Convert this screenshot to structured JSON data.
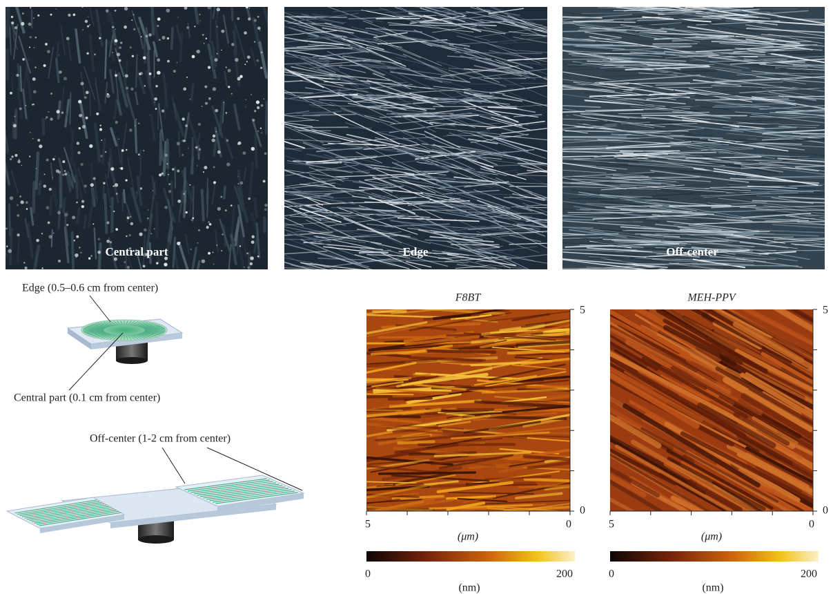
{
  "micrographs": [
    {
      "label": "Central part"
    },
    {
      "label": "Edge"
    },
    {
      "label": "Off-center"
    }
  ],
  "diagram": {
    "edge_label": "Edge (0.5–0.6 cm from center)",
    "central_label": "Central part (0.1 cm from center)",
    "offcenter_label": "Off-center (1-2 cm from center)"
  },
  "afm": [
    {
      "title": "F8BT",
      "y_ticks": [
        "5",
        "0"
      ],
      "x_ticks": [
        "5",
        "0"
      ],
      "x_label": "(μm)",
      "colorbar": {
        "ticks": [
          "0",
          "200"
        ],
        "label": "(nm)"
      }
    },
    {
      "title": "MEH-PPV",
      "y_ticks": [
        "5",
        "0"
      ],
      "x_ticks": [
        "5",
        "0"
      ],
      "x_label": "(μm)",
      "colorbar": {
        "ticks": [
          "0",
          "200"
        ],
        "label": "(nm)"
      }
    }
  ]
}
